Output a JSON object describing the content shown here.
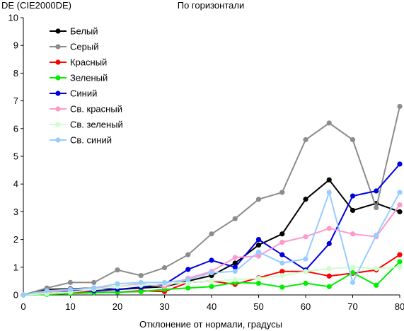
{
  "chart_data": {
    "type": "line",
    "title": "По горизонтали",
    "ylabel": "DE (CIE2000DE)",
    "xlabel": "Отклонение от нормали, градусы",
    "xlim": [
      0,
      80
    ],
    "ylim": [
      0,
      10
    ],
    "x_ticks": [
      0,
      10,
      20,
      30,
      40,
      50,
      60,
      70,
      80
    ],
    "y_ticks": [
      0,
      1,
      2,
      3,
      4,
      5,
      6,
      7,
      8,
      9,
      10
    ],
    "grid": false,
    "legend_position": "top-left",
    "x": [
      0,
      5,
      10,
      15,
      20,
      25,
      30,
      35,
      40,
      45,
      50,
      55,
      60,
      65,
      70,
      75,
      80
    ],
    "series": [
      {
        "name": "Белый",
        "color": "#000000",
        "values": [
          0,
          0.2,
          0.22,
          0.25,
          0.2,
          0.25,
          0.3,
          0.5,
          0.7,
          1.15,
          1.8,
          2.2,
          3.45,
          4.15,
          3.05,
          3.3,
          3.0
        ]
      },
      {
        "name": "Серый",
        "color": "#8c8c8c",
        "values": [
          0,
          0.25,
          0.45,
          0.45,
          0.9,
          0.7,
          0.98,
          1.45,
          2.2,
          2.75,
          3.45,
          3.7,
          5.6,
          6.2,
          5.6,
          3.15,
          6.8
        ]
      },
      {
        "name": "Красный",
        "color": "#ff0000",
        "values": [
          0,
          0.05,
          0.1,
          0.1,
          0.1,
          0.15,
          0.12,
          0.45,
          0.5,
          0.38,
          0.62,
          0.85,
          0.85,
          0.68,
          0.78,
          0.9,
          1.45
        ]
      },
      {
        "name": "Зеленый",
        "color": "#00ee00",
        "values": [
          0,
          0.02,
          0.05,
          0.08,
          0.1,
          0.12,
          0.2,
          0.25,
          0.3,
          0.45,
          0.42,
          0.28,
          0.42,
          0.3,
          0.8,
          0.35,
          1.2
        ]
      },
      {
        "name": "Синий",
        "color": "#0000dd",
        "values": [
          0,
          0.12,
          0.15,
          0.15,
          0.2,
          0.28,
          0.38,
          0.92,
          1.25,
          1.0,
          2.0,
          1.45,
          0.9,
          1.85,
          3.57,
          3.75,
          4.72
        ]
      },
      {
        "name": "Св. красный",
        "color": "#ff99cc",
        "values": [
          0,
          0.1,
          0.18,
          0.25,
          0.3,
          0.4,
          0.3,
          0.6,
          0.85,
          1.35,
          1.4,
          1.9,
          2.1,
          2.4,
          2.2,
          2.1,
          3.25
        ]
      },
      {
        "name": "Св. зеленый",
        "color": "#ccffcc",
        "values": [
          0,
          0.05,
          0.1,
          0.2,
          0.3,
          0.35,
          0.4,
          0.45,
          0.5,
          0.55,
          0.6,
          0.7,
          0.85,
          0.95,
          1.0,
          0.95,
          1.0
        ]
      },
      {
        "name": "Св. синий",
        "color": "#99ccff",
        "values": [
          0,
          0.15,
          0.2,
          0.25,
          0.4,
          0.45,
          0.45,
          0.55,
          0.8,
          0.85,
          1.55,
          1.15,
          1.3,
          3.7,
          0.45,
          2.15,
          3.7
        ]
      }
    ]
  }
}
